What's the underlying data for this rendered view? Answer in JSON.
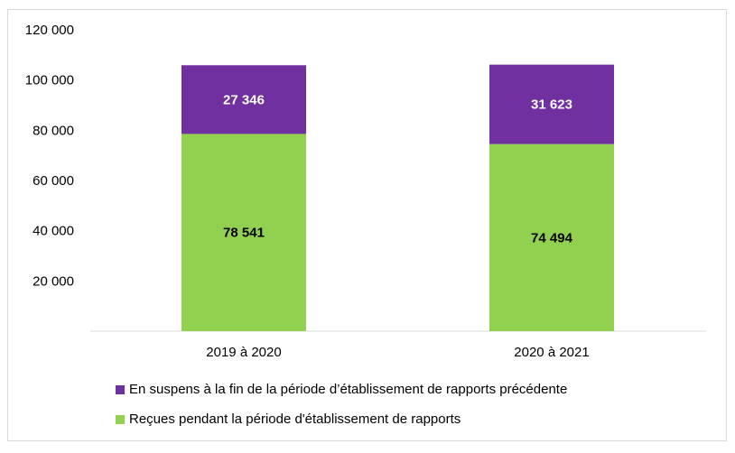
{
  "chart_data": {
    "type": "bar",
    "stacked": true,
    "categories": [
      "2019 à 2020",
      "2020 à 2021"
    ],
    "series": [
      {
        "name": "Reçues pendant la période d'établissement de rapports",
        "values": [
          78541,
          74494
        ],
        "labels": [
          "78 541",
          "74 494"
        ],
        "color": "#92d050",
        "label_color": "#000000"
      },
      {
        "name": "En suspens à la fin de la période d’établissement de rapports précédente",
        "values": [
          27346,
          31623
        ],
        "labels": [
          "27 346",
          "31 623"
        ],
        "color": "#7030a0",
        "label_color": "#ffffff"
      }
    ],
    "ylim": [
      0,
      120000
    ],
    "yticks": [
      20000,
      40000,
      60000,
      80000,
      100000,
      120000
    ],
    "ytick_labels": [
      "20 000",
      "40 000",
      "60 000",
      "80 000",
      "100 000",
      "120 000"
    ],
    "grid": false,
    "legend_position": "bottom-left",
    "title": "",
    "xlabel": "",
    "ylabel": ""
  },
  "legend": {
    "items": [
      {
        "label": "En suspens à la fin de la période d’établissement de rapports précédente",
        "color": "#7030a0"
      },
      {
        "label": "Reçues pendant la période d'établissement de rapports",
        "color": "#92d050"
      }
    ]
  }
}
